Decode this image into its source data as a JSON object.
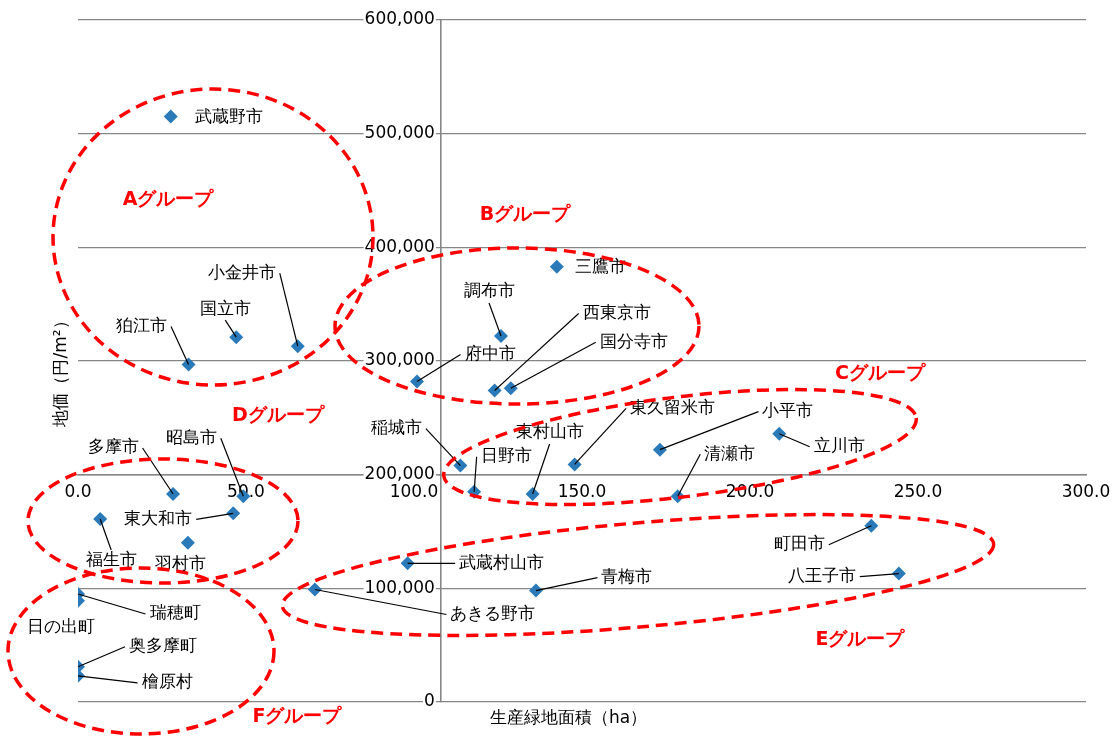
{
  "chart_data": {
    "type": "scatter",
    "xlabel": "生産緑地面積（ha）",
    "ylabel": "地価（円/m²）",
    "x": [
      27.6,
      32.9,
      47.1,
      65.4,
      100.9,
      125.9,
      142.5,
      124.0,
      128.8,
      113.8,
      117.9,
      135.3,
      147.8,
      173.2,
      178.5,
      208.7,
      236.1,
      244.3,
      136.3,
      98.1,
      70.5,
      28.3,
      49.2,
      46.2,
      6.6,
      32.7,
      0,
      0,
      0,
      0
    ],
    "series": [
      {
        "color": "#2a7ab9",
        "values": [
          515000,
          297000,
          321000,
          313000,
          282000,
          322000,
          383000,
          274000,
          276000,
          208000,
          185000,
          183000,
          209000,
          222000,
          181000,
          236000,
          155000,
          113000,
          98000,
          122000,
          99000,
          183000,
          181000,
          166000,
          161000,
          140000,
          95000,
          89000,
          31000,
          23000
        ]
      }
    ],
    "xlim": [
      0,
      300
    ],
    "ylim": [
      0,
      600000
    ],
    "xticks": [
      {
        "value": 0,
        "label": "0.0"
      },
      {
        "value": 50,
        "label": "50.0"
      },
      {
        "value": 100,
        "label": "100.0"
      },
      {
        "value": 150,
        "label": "150.0"
      },
      {
        "value": 200,
        "label": "200.0"
      },
      {
        "value": 250,
        "label": "250.0"
      },
      {
        "value": 300,
        "label": "300.0"
      }
    ],
    "yticks": [
      0,
      {
        "value": 100000,
        "label": "100,000"
      },
      {
        "value": 200000,
        "label": "200,000"
      },
      {
        "value": 300000,
        "label": "300,000"
      },
      {
        "value": 400000,
        "label": "400,000"
      },
      {
        "value": 500000,
        "label": "500,000"
      },
      {
        "value": 600000,
        "label": "600,000"
      }
    ],
    "grid": "y",
    "legend": false,
    "marker": "diamond",
    "annotations": [
      {
        "text": "武蔵野市",
        "x": 27.6,
        "y": 515000
      },
      {
        "text": "狛江市",
        "x": 32.9,
        "y": 297000
      },
      {
        "text": "国立市",
        "x": 47.1,
        "y": 321000
      },
      {
        "text": "小金井市",
        "x": 65.4,
        "y": 313000
      },
      {
        "text": "府中市",
        "x": 100.9,
        "y": 282000
      },
      {
        "text": "調布市",
        "x": 125.9,
        "y": 322000
      },
      {
        "text": "三鷹市",
        "x": 142.5,
        "y": 383000
      },
      {
        "text": "西東京市",
        "x": 124.0,
        "y": 274000
      },
      {
        "text": "国分寺市",
        "x": 128.8,
        "y": 276000
      },
      {
        "text": "稲城市",
        "x": 113.8,
        "y": 208000
      },
      {
        "text": "日野市",
        "x": 117.9,
        "y": 185000
      },
      {
        "text": "東村山市",
        "x": 135.3,
        "y": 183000
      },
      {
        "text": "東久留米市",
        "x": 147.8,
        "y": 209000
      },
      {
        "text": "小平市",
        "x": 173.2,
        "y": 222000
      },
      {
        "text": "清瀬市",
        "x": 178.5,
        "y": 181000
      },
      {
        "text": "立川市",
        "x": 208.7,
        "y": 236000
      },
      {
        "text": "町田市",
        "x": 236.1,
        "y": 155000
      },
      {
        "text": "八王子市",
        "x": 244.3,
        "y": 113000
      },
      {
        "text": "青梅市",
        "x": 136.3,
        "y": 98000
      },
      {
        "text": "武蔵村山市",
        "x": 98.1,
        "y": 122000
      },
      {
        "text": "あきる野市",
        "x": 70.5,
        "y": 99000
      },
      {
        "text": "多摩市",
        "x": 28.3,
        "y": 183000
      },
      {
        "text": "昭島市",
        "x": 49.2,
        "y": 181000
      },
      {
        "text": "東大和市",
        "x": 46.2,
        "y": 166000
      },
      {
        "text": "福生市",
        "x": 6.6,
        "y": 161000
      },
      {
        "text": "羽村市",
        "x": 32.7,
        "y": 140000
      },
      {
        "text": "瑞穂町",
        "x": 0,
        "y": 95000
      },
      {
        "text": "日の出町",
        "x": 0,
        "y": 89000
      },
      {
        "text": "奥多摩町",
        "x": 0,
        "y": 31000
      },
      {
        "text": "檜原村",
        "x": 0,
        "y": 23000
      },
      "Aグループ",
      "Bグループ",
      "Cグループ",
      "Dグループ",
      "Eグループ",
      "Fグループ"
    ]
  }
}
